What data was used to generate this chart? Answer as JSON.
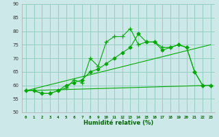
{
  "xlabel": "Humidité relative (%)",
  "xlim": [
    -0.5,
    23.5
  ],
  "ylim": [
    50,
    90
  ],
  "xticks": [
    0,
    1,
    2,
    3,
    4,
    5,
    6,
    7,
    8,
    9,
    10,
    11,
    12,
    13,
    14,
    15,
    16,
    17,
    18,
    19,
    20,
    21,
    22,
    23
  ],
  "yticks": [
    50,
    55,
    60,
    65,
    70,
    75,
    80,
    85,
    90
  ],
  "bg_color": "#cce8e8",
  "grid_color": "#88ccbb",
  "line_color": "#00aa00",
  "series": [
    {
      "x": [
        0,
        1,
        2,
        3,
        4,
        5,
        6,
        7,
        8,
        9,
        10,
        11,
        12,
        13,
        14,
        15,
        16,
        17,
        18,
        19,
        20,
        21,
        22,
        23
      ],
      "y": [
        58,
        58,
        57,
        57,
        58,
        59,
        62,
        61,
        70,
        67,
        76,
        78,
        78,
        81,
        75,
        76,
        76,
        74,
        74,
        75,
        74,
        65,
        60,
        60
      ],
      "marker": "+",
      "markersize": 4
    },
    {
      "x": [
        0,
        1,
        2,
        3,
        4,
        5,
        6,
        7,
        8,
        9,
        10,
        11,
        12,
        13,
        14,
        15,
        16,
        17,
        18,
        19,
        20,
        21,
        22,
        23
      ],
      "y": [
        58,
        58,
        57,
        57,
        58,
        60,
        61,
        62,
        65,
        66,
        68,
        70,
        72,
        74,
        79,
        76,
        76,
        73,
        74,
        75,
        74,
        65,
        60,
        60
      ],
      "marker": "D",
      "markersize": 2.5
    },
    {
      "x": [
        0,
        23
      ],
      "y": [
        58,
        75
      ],
      "marker": null,
      "markersize": null
    },
    {
      "x": [
        0,
        23
      ],
      "y": [
        58,
        60
      ],
      "marker": null,
      "markersize": null
    }
  ]
}
